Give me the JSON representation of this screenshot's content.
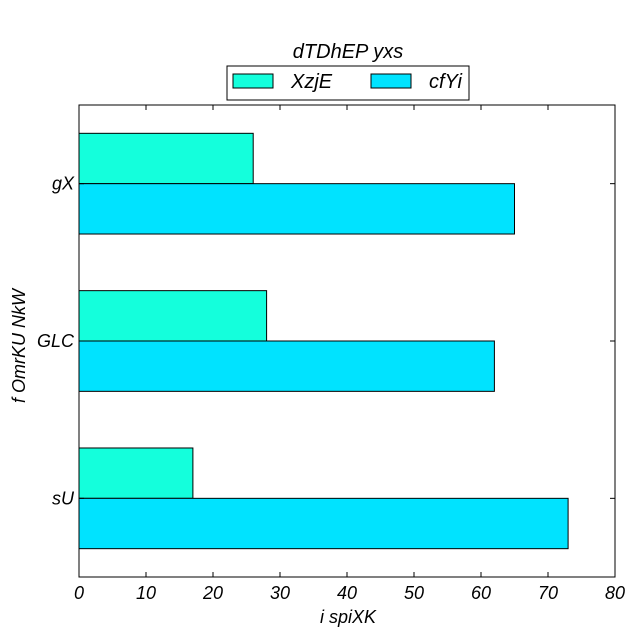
{
  "chart_data": {
    "type": "bar",
    "orientation": "horizontal",
    "legend_title": "dTDhEP yxs",
    "legend_placement": "top-center",
    "xlabel": "i spiXK",
    "ylabel": "f OmrKU NkW",
    "xlim": [
      0,
      80
    ],
    "xticks": [
      "0",
      "10",
      "20",
      "30",
      "40",
      "50",
      "60",
      "70",
      "80"
    ],
    "grid": false,
    "categories": [
      "gX",
      "GLC",
      "sU"
    ],
    "series": [
      {
        "name": "XzjE",
        "color": "#14ffdc",
        "values": [
          26,
          28,
          17
        ]
      },
      {
        "name": "cfYi",
        "color": "#00e3ff",
        "values": [
          65,
          62,
          73
        ]
      }
    ]
  }
}
